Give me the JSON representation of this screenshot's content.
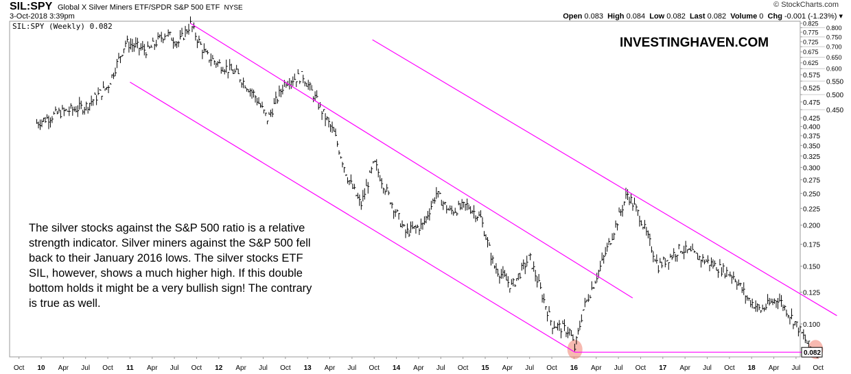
{
  "header": {
    "symbol": "SIL:SPY",
    "name": "Global X Silver Miners ETF/SPDR S&P 500 ETF",
    "exchange": "NYSE",
    "date": "3-Oct-2018 3:39pm",
    "source": "© StockCharts.com",
    "open_label": "Open",
    "open": "0.083",
    "high_label": "High",
    "high": "0.084",
    "low_label": "Low",
    "low": "0.082",
    "last_label": "Last",
    "last": "0.082",
    "volume_label": "Volume",
    "volume": "0",
    "chg_label": "Chg",
    "chg": "-0.001 (-1.23%) ▾"
  },
  "legend": "SIL:SPY (Weekly) 0.082",
  "brand": "INVESTINGHAVEN.COM",
  "note": "The silver stocks against the S&P 500 ratio is a relative strength indicator. Silver miners against the S&P 500 fell back to their January 2016 lows. The silver stocks ETF SIL, however, shows a much higher high. If this double bottom holds it might be a very bullish sign! The contrary is true as well.",
  "colors": {
    "trendline": "#ff00ff",
    "circle": "#f08070",
    "bar": "#000000"
  },
  "chart_data": {
    "type": "line",
    "title": "SIL:SPY (Weekly)",
    "scale": "log",
    "ylim": [
      0.08,
      0.84
    ],
    "xlim": [
      2009.7,
      2018.85
    ],
    "yticks": [
      "0.825",
      "0.800",
      "0.775",
      "0.750",
      "0.725",
      "0.700",
      "0.675",
      "0.650",
      "0.625",
      "0.600",
      "0.575",
      "0.550",
      "0.525",
      "0.500",
      "0.475",
      "0.450",
      "0.425",
      "0.400",
      "0.375",
      "0.350",
      "0.325",
      "0.300",
      "0.275",
      "0.250",
      "0.225",
      "0.200",
      "0.175",
      "0.150",
      "0.125",
      "0.100"
    ],
    "last_value": "0.082",
    "xticks": [
      [
        "Oct",
        2009.75
      ],
      [
        "10",
        2010
      ],
      [
        "Apr",
        2010.25
      ],
      [
        "Jul",
        2010.5
      ],
      [
        "Oct",
        2010.75
      ],
      [
        "11",
        2011
      ],
      [
        "Apr",
        2011.25
      ],
      [
        "Jul",
        2011.5
      ],
      [
        "Oct",
        2011.75
      ],
      [
        "12",
        2012
      ],
      [
        "Apr",
        2012.25
      ],
      [
        "Jul",
        2012.5
      ],
      [
        "Oct",
        2012.75
      ],
      [
        "13",
        2013
      ],
      [
        "Apr",
        2013.25
      ],
      [
        "Jul",
        2013.5
      ],
      [
        "Oct",
        2013.75
      ],
      [
        "14",
        2014
      ],
      [
        "Apr",
        2014.25
      ],
      [
        "Jul",
        2014.5
      ],
      [
        "Oct",
        2014.75
      ],
      [
        "15",
        2015
      ],
      [
        "Apr",
        2015.25
      ],
      [
        "Jul",
        2015.5
      ],
      [
        "Oct",
        2015.75
      ],
      [
        "16",
        2016
      ],
      [
        "Apr",
        2016.25
      ],
      [
        "Jul",
        2016.5
      ],
      [
        "Oct",
        2016.75
      ],
      [
        "17",
        2017
      ],
      [
        "Apr",
        2017.25
      ],
      [
        "Jul",
        2017.5
      ],
      [
        "Oct",
        2017.75
      ],
      [
        "18",
        2018
      ],
      [
        "Apr",
        2018.25
      ],
      [
        "Jul",
        2018.5
      ],
      [
        "Oct",
        2018.75
      ]
    ],
    "series": [
      {
        "name": "SIL:SPY",
        "points": [
          [
            2009.95,
            0.41
          ],
          [
            2010.2,
            0.44
          ],
          [
            2010.5,
            0.46
          ],
          [
            2010.75,
            0.53
          ],
          [
            2010.95,
            0.72
          ],
          [
            2011.2,
            0.68
          ],
          [
            2011.4,
            0.77
          ],
          [
            2011.55,
            0.72
          ],
          [
            2011.68,
            0.82
          ],
          [
            2011.85,
            0.66
          ],
          [
            2012.0,
            0.62
          ],
          [
            2012.2,
            0.58
          ],
          [
            2012.4,
            0.5
          ],
          [
            2012.55,
            0.42
          ],
          [
            2012.75,
            0.55
          ],
          [
            2012.95,
            0.57
          ],
          [
            2013.1,
            0.48
          ],
          [
            2013.3,
            0.38
          ],
          [
            2013.45,
            0.28
          ],
          [
            2013.6,
            0.23
          ],
          [
            2013.75,
            0.31
          ],
          [
            2013.9,
            0.25
          ],
          [
            2014.1,
            0.19
          ],
          [
            2014.3,
            0.2
          ],
          [
            2014.45,
            0.25
          ],
          [
            2014.6,
            0.22
          ],
          [
            2014.8,
            0.23
          ],
          [
            2014.95,
            0.21
          ],
          [
            2015.1,
            0.15
          ],
          [
            2015.3,
            0.13
          ],
          [
            2015.5,
            0.16
          ],
          [
            2015.75,
            0.1
          ],
          [
            2015.95,
            0.095
          ],
          [
            2016.01,
            0.084
          ],
          [
            2016.1,
            0.11
          ],
          [
            2016.3,
            0.15
          ],
          [
            2016.5,
            0.21
          ],
          [
            2016.6,
            0.25
          ],
          [
            2016.75,
            0.21
          ],
          [
            2016.95,
            0.15
          ],
          [
            2017.2,
            0.17
          ],
          [
            2017.4,
            0.16
          ],
          [
            2017.6,
            0.15
          ],
          [
            2017.8,
            0.14
          ],
          [
            2017.95,
            0.12
          ],
          [
            2018.1,
            0.11
          ],
          [
            2018.3,
            0.12
          ],
          [
            2018.5,
            0.1
          ],
          [
            2018.65,
            0.085
          ],
          [
            2018.75,
            0.082
          ]
        ]
      }
    ],
    "trendlines": [
      [
        [
          2011.68,
          0.825
        ],
        [
          2016.66,
          0.12
        ]
      ],
      [
        [
          2011.0,
          0.546
        ],
        [
          2016.01,
          0.082
        ]
      ],
      [
        [
          2013.73,
          0.735
        ],
        [
          2018.96,
          0.106
        ]
      ],
      [
        [
          2016.01,
          0.082
        ],
        [
          2018.72,
          0.082
        ]
      ]
    ],
    "circles": [
      [
        2016.01,
        0.082
      ],
      [
        2018.72,
        0.082
      ]
    ]
  }
}
